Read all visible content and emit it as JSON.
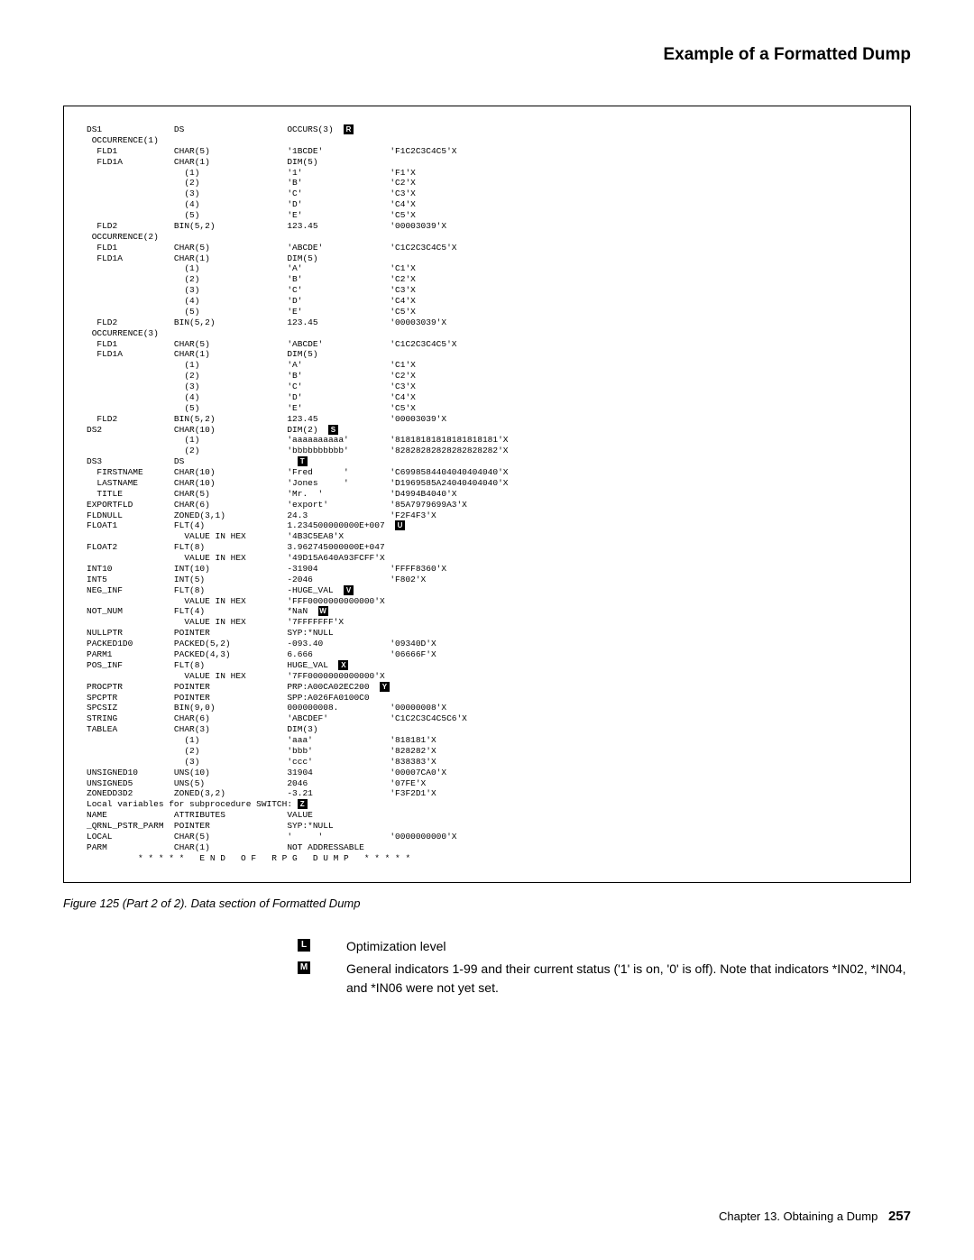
{
  "title": "Example of a Formatted Dump",
  "dump": {
    "c1": 17,
    "c2": 22,
    "c3": 20,
    "c4": 25,
    "rows": [
      [
        "DS1",
        "DS",
        "OCCURS(3)",
        "",
        "R"
      ],
      [
        " OCCURRENCE(1)",
        "",
        "",
        ""
      ],
      [
        "  FLD1",
        "CHAR(5)",
        "'1BCDE'",
        "'F1C2C3C4C5'X"
      ],
      [
        "  FLD1A",
        "CHAR(1)",
        "DIM(5)",
        ""
      ],
      [
        "",
        "  (1)",
        "'1'",
        "'F1'X"
      ],
      [
        "",
        "  (2)",
        "'B'",
        "'C2'X"
      ],
      [
        "",
        "  (3)",
        "'C'",
        "'C3'X"
      ],
      [
        "",
        "  (4)",
        "'D'",
        "'C4'X"
      ],
      [
        "",
        "  (5)",
        "'E'",
        "'C5'X"
      ],
      [
        "  FLD2",
        "BIN(5,2)",
        "123.45",
        "'00003039'X"
      ],
      [
        " OCCURRENCE(2)",
        "",
        "",
        ""
      ],
      [
        "  FLD1",
        "CHAR(5)",
        "'ABCDE'",
        "'C1C2C3C4C5'X"
      ],
      [
        "  FLD1A",
        "CHAR(1)",
        "DIM(5)",
        ""
      ],
      [
        "",
        "  (1)",
        "'A'",
        "'C1'X"
      ],
      [
        "",
        "  (2)",
        "'B'",
        "'C2'X"
      ],
      [
        "",
        "  (3)",
        "'C'",
        "'C3'X"
      ],
      [
        "",
        "  (4)",
        "'D'",
        "'C4'X"
      ],
      [
        "",
        "  (5)",
        "'E'",
        "'C5'X"
      ],
      [
        "  FLD2",
        "BIN(5,2)",
        "123.45",
        "'00003039'X"
      ],
      [
        " OCCURRENCE(3)",
        "",
        "",
        ""
      ],
      [
        "  FLD1",
        "CHAR(5)",
        "'ABCDE'",
        "'C1C2C3C4C5'X"
      ],
      [
        "  FLD1A",
        "CHAR(1)",
        "DIM(5)",
        ""
      ],
      [
        "",
        "  (1)",
        "'A'",
        "'C1'X"
      ],
      [
        "",
        "  (2)",
        "'B'",
        "'C2'X"
      ],
      [
        "",
        "  (3)",
        "'C'",
        "'C3'X"
      ],
      [
        "",
        "  (4)",
        "'D'",
        "'C4'X"
      ],
      [
        "",
        "  (5)",
        "'E'",
        "'C5'X"
      ],
      [
        "  FLD2",
        "BIN(5,2)",
        "123.45",
        "'00003039'X"
      ],
      [
        "DS2",
        "CHAR(10)",
        "DIM(2)",
        "",
        "S"
      ],
      [
        "",
        "  (1)",
        "'aaaaaaaaaa'",
        "'81818181818181818181'X"
      ],
      [
        "",
        "  (2)",
        "'bbbbbbbbbb'",
        "'82828282828282828282'X"
      ],
      [
        "DS3",
        "DS",
        "",
        "",
        "T"
      ],
      [
        "  FIRSTNAME",
        "CHAR(10)",
        "'Fred      '",
        "'C6998584404040404040'X"
      ],
      [
        "  LASTNAME",
        "CHAR(10)",
        "'Jones     '",
        "'D1969585A24040404040'X"
      ],
      [
        "  TITLE",
        "CHAR(5)",
        "'Mr.  '",
        "'D4994B4040'X"
      ],
      [
        "EXPORTFLD",
        "CHAR(6)",
        "'export'",
        "'85A7979699A3'X"
      ],
      [
        "FLDNULL",
        "ZONED(3,1)",
        "24.3",
        "'F2F4F3'X"
      ],
      [
        "FLOAT1",
        "FLT(4)",
        "1.234500000000E+007",
        "",
        "U"
      ],
      [
        "",
        "  VALUE IN HEX",
        "'4B3C5EA8'X",
        ""
      ],
      [
        "FLOAT2",
        "FLT(8)",
        "3.962745000000E+047",
        ""
      ],
      [
        "",
        "  VALUE IN HEX",
        "'49D15A640A93FCFF'X",
        ""
      ],
      [
        "INT10",
        "INT(10)",
        "-31904",
        "'FFFF8360'X"
      ],
      [
        "INT5",
        "INT(5)",
        "-2046",
        "'F802'X"
      ],
      [
        "NEG_INF",
        "FLT(8)",
        "-HUGE_VAL",
        "",
        "V"
      ],
      [
        "",
        "  VALUE IN HEX",
        "'FFF0000000000000'X",
        ""
      ],
      [
        "NOT_NUM",
        "FLT(4)",
        "*NaN",
        "",
        "W"
      ],
      [
        "",
        "  VALUE IN HEX",
        "'7FFFFFFF'X",
        ""
      ],
      [
        "NULLPTR",
        "POINTER",
        "SYP:*NULL",
        ""
      ],
      [
        "PACKED1D0",
        "PACKED(5,2)",
        "-093.40",
        "'09340D'X"
      ],
      [
        "PARM1",
        "PACKED(4,3)",
        "6.666",
        "'06666F'X"
      ],
      [
        "POS_INF",
        "FLT(8)",
        "HUGE_VAL",
        "",
        "X"
      ],
      [
        "",
        "  VALUE IN HEX",
        "'7FF0000000000000'X",
        ""
      ],
      [
        "PROCPTR",
        "POINTER",
        "PRP:A00CA02EC200",
        "",
        "Y"
      ],
      [
        "SPCPTR",
        "POINTER",
        "SPP:A026FA0100C0",
        ""
      ],
      [
        "SPCSIZ",
        "BIN(9,0)",
        "000000008.",
        "'00000008'X"
      ],
      [
        "STRING",
        "CHAR(6)",
        "'ABCDEF'",
        "'C1C2C3C4C5C6'X"
      ],
      [
        "TABLEA",
        "CHAR(3)",
        "DIM(3)",
        ""
      ],
      [
        "",
        "  (1)",
        "'aaa'",
        "'818181'X"
      ],
      [
        "",
        "  (2)",
        "'bbb'",
        "'828282'X"
      ],
      [
        "",
        "  (3)",
        "'ccc'",
        "'838383'X"
      ],
      [
        "UNSIGNED10",
        "UNS(10)",
        "31904",
        "'00007CA0'X"
      ],
      [
        "UNSIGNED5",
        "UNS(5)",
        "2046",
        "'07FE'X"
      ],
      [
        "ZONEDD3D2",
        "ZONED(3,2)",
        "-3.21",
        "'F3F2D1'X"
      ]
    ],
    "switch_line_a": "Local variables for subprocedure SWITCH:",
    "switch_marker": "Z",
    "switch_rows": [
      [
        "NAME",
        "ATTRIBUTES",
        "VALUE",
        ""
      ],
      [
        "_QRNL_PSTR_PARM",
        "POINTER",
        "SYP:*NULL",
        ""
      ],
      [
        "LOCAL",
        "CHAR(5)",
        "'     '",
        "'0000000000'X"
      ],
      [
        "PARM",
        "CHAR(1)",
        "NOT ADDRESSABLE",
        ""
      ]
    ],
    "end_line": "          * * * * *   E N D   O F   R P G   D U M P   * * * * *"
  },
  "caption": "Figure 125 (Part 2 of 2). Data section of Formatted Dump",
  "notes": [
    {
      "marker": "L",
      "text": "Optimization level"
    },
    {
      "marker": "M",
      "text": "General indicators 1-99 and their current status ('1' is on, '0' is off). Note that indicators *IN02, *IN04, and *IN06 were not yet set."
    }
  ],
  "footer": {
    "chapter": "Chapter 13. Obtaining a Dump",
    "page": "257"
  }
}
